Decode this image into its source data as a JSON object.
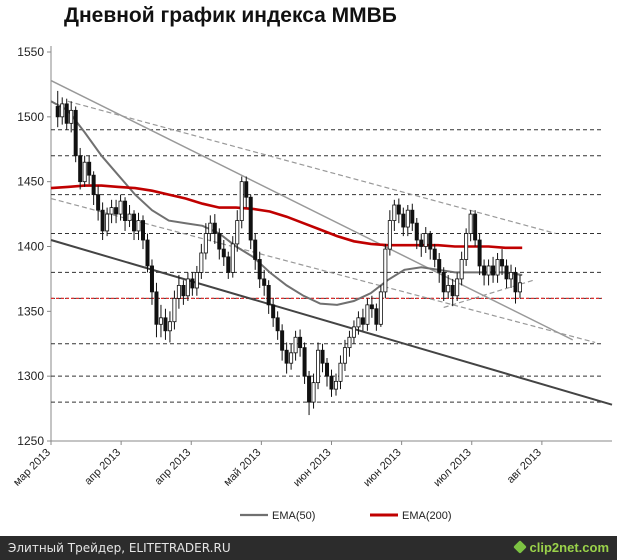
{
  "footer": {
    "left_text": "Элитный Трейдер, ELITETRADER.RU",
    "logo_text": "clip2net.com",
    "logo_icon": "clip2net-logo-icon"
  },
  "chart_data": {
    "type": "line",
    "title": "Дневной график индекса ММВБ",
    "xlabel": "",
    "ylabel": "",
    "ylim": [
      1250,
      1550
    ],
    "y_ticks": [
      1250,
      1300,
      1350,
      1400,
      1450,
      1500,
      1550
    ],
    "x_domain": [
      0,
      100
    ],
    "x_ticks": [
      {
        "x": 0,
        "label": "мар 2013"
      },
      {
        "x": 12.5,
        "label": "апр 2013"
      },
      {
        "x": 25,
        "label": "апр 2013"
      },
      {
        "x": 37.5,
        "label": "май 2013"
      },
      {
        "x": 50,
        "label": "июн 2013"
      },
      {
        "x": 62.5,
        "label": "июн 2013"
      },
      {
        "x": 75,
        "label": "июл 2013"
      },
      {
        "x": 87.5,
        "label": "авг 2013"
      }
    ],
    "grid": false,
    "legend": "bottom",
    "colors": {
      "candles": "#111111",
      "ema50": "#707070",
      "ema200": "#c00000",
      "support_red": "#e03030",
      "trend_dark": "#444444",
      "trend_grey": "#999999",
      "level": "#333333"
    },
    "candles": [
      [
        1.2,
        1508,
        1500,
        1520,
        1492
      ],
      [
        2.0,
        1500,
        1510,
        1515,
        1494
      ],
      [
        2.8,
        1510,
        1495,
        1514,
        1490
      ],
      [
        3.6,
        1495,
        1505,
        1512,
        1488
      ],
      [
        4.4,
        1505,
        1470,
        1508,
        1465
      ],
      [
        5.2,
        1470,
        1450,
        1476,
        1444
      ],
      [
        6.0,
        1450,
        1465,
        1470,
        1446
      ],
      [
        6.8,
        1465,
        1455,
        1470,
        1448
      ],
      [
        7.6,
        1455,
        1440,
        1458,
        1432
      ],
      [
        8.4,
        1440,
        1428,
        1447,
        1420
      ],
      [
        9.2,
        1428,
        1412,
        1434,
        1405
      ],
      [
        10.0,
        1412,
        1425,
        1430,
        1408
      ],
      [
        10.8,
        1425,
        1430,
        1436,
        1418
      ],
      [
        11.6,
        1430,
        1425,
        1436,
        1418
      ],
      [
        12.4,
        1425,
        1435,
        1440,
        1420
      ],
      [
        13.2,
        1435,
        1420,
        1438,
        1412
      ],
      [
        14.0,
        1420,
        1425,
        1432,
        1415
      ],
      [
        14.8,
        1425,
        1412,
        1428,
        1405
      ],
      [
        15.6,
        1412,
        1420,
        1426,
        1405
      ],
      [
        16.4,
        1420,
        1405,
        1424,
        1398
      ],
      [
        17.2,
        1405,
        1385,
        1410,
        1380
      ],
      [
        18.0,
        1385,
        1365,
        1390,
        1355
      ],
      [
        18.8,
        1365,
        1340,
        1372,
        1330
      ],
      [
        19.6,
        1340,
        1345,
        1355,
        1330
      ],
      [
        20.4,
        1345,
        1335,
        1352,
        1328
      ],
      [
        21.2,
        1335,
        1342,
        1350,
        1326
      ],
      [
        22.0,
        1342,
        1360,
        1366,
        1336
      ],
      [
        22.8,
        1360,
        1370,
        1378,
        1352
      ],
      [
        23.6,
        1370,
        1362,
        1374,
        1355
      ],
      [
        24.4,
        1362,
        1375,
        1380,
        1358
      ],
      [
        25.2,
        1375,
        1368,
        1380,
        1362
      ],
      [
        26.0,
        1368,
        1380,
        1385,
        1362
      ],
      [
        26.8,
        1380,
        1395,
        1402,
        1375
      ],
      [
        27.6,
        1395,
        1410,
        1418,
        1390
      ],
      [
        28.4,
        1410,
        1418,
        1424,
        1404
      ],
      [
        29.2,
        1418,
        1410,
        1425,
        1402
      ],
      [
        30.0,
        1410,
        1398,
        1414,
        1390
      ],
      [
        30.8,
        1398,
        1392,
        1405,
        1385
      ],
      [
        31.6,
        1392,
        1380,
        1396,
        1375
      ],
      [
        32.4,
        1380,
        1402,
        1408,
        1376
      ],
      [
        33.2,
        1402,
        1420,
        1428,
        1396
      ],
      [
        34.0,
        1420,
        1450,
        1454,
        1414
      ],
      [
        34.8,
        1450,
        1438,
        1454,
        1430
      ],
      [
        35.6,
        1438,
        1405,
        1440,
        1398
      ],
      [
        36.4,
        1405,
        1390,
        1410,
        1382
      ],
      [
        37.2,
        1390,
        1375,
        1396,
        1368
      ],
      [
        38.0,
        1375,
        1370,
        1382,
        1362
      ],
      [
        38.8,
        1370,
        1355,
        1374,
        1348
      ],
      [
        39.6,
        1355,
        1345,
        1360,
        1338
      ],
      [
        40.4,
        1345,
        1335,
        1350,
        1328
      ],
      [
        41.2,
        1335,
        1320,
        1340,
        1312
      ],
      [
        42.0,
        1320,
        1310,
        1326,
        1302
      ],
      [
        42.8,
        1310,
        1318,
        1325,
        1305
      ],
      [
        43.6,
        1318,
        1330,
        1335,
        1312
      ],
      [
        44.4,
        1330,
        1322,
        1336,
        1315
      ],
      [
        45.2,
        1322,
        1300,
        1326,
        1294
      ],
      [
        46.0,
        1300,
        1280,
        1304,
        1270
      ],
      [
        46.8,
        1280,
        1295,
        1302,
        1275
      ],
      [
        47.6,
        1295,
        1320,
        1326,
        1290
      ],
      [
        48.4,
        1320,
        1310,
        1325,
        1303
      ],
      [
        49.2,
        1310,
        1300,
        1314,
        1292
      ],
      [
        50.0,
        1300,
        1290,
        1305,
        1284
      ],
      [
        50.8,
        1290,
        1296,
        1302,
        1285
      ],
      [
        51.6,
        1296,
        1310,
        1316,
        1290
      ],
      [
        52.4,
        1310,
        1322,
        1328,
        1304
      ],
      [
        53.2,
        1322,
        1330,
        1335,
        1315
      ],
      [
        54.0,
        1330,
        1338,
        1343,
        1325
      ],
      [
        54.8,
        1338,
        1345,
        1350,
        1332
      ],
      [
        55.6,
        1345,
        1340,
        1352,
        1335
      ],
      [
        56.4,
        1340,
        1355,
        1360,
        1335
      ],
      [
        57.2,
        1355,
        1352,
        1362,
        1345
      ],
      [
        58.0,
        1352,
        1340,
        1356,
        1335
      ],
      [
        58.8,
        1340,
        1365,
        1370,
        1338
      ],
      [
        59.6,
        1365,
        1398,
        1402,
        1360
      ],
      [
        60.4,
        1398,
        1420,
        1428,
        1393
      ],
      [
        61.2,
        1420,
        1432,
        1436,
        1412
      ],
      [
        62.0,
        1432,
        1425,
        1437,
        1418
      ],
      [
        62.8,
        1425,
        1415,
        1430,
        1408
      ],
      [
        63.6,
        1415,
        1428,
        1432,
        1408
      ],
      [
        64.4,
        1428,
        1418,
        1433,
        1412
      ],
      [
        65.2,
        1418,
        1405,
        1422,
        1398
      ],
      [
        66.0,
        1405,
        1400,
        1410,
        1392
      ],
      [
        66.8,
        1400,
        1410,
        1415,
        1395
      ],
      [
        67.6,
        1410,
        1398,
        1412,
        1390
      ],
      [
        68.4,
        1398,
        1390,
        1402,
        1384
      ],
      [
        69.2,
        1390,
        1380,
        1395,
        1372
      ],
      [
        70.0,
        1380,
        1365,
        1384,
        1358
      ],
      [
        70.8,
        1365,
        1370,
        1378,
        1360
      ],
      [
        71.6,
        1370,
        1362,
        1375,
        1354
      ],
      [
        72.4,
        1362,
        1375,
        1380,
        1358
      ],
      [
        73.2,
        1375,
        1390,
        1396,
        1370
      ],
      [
        74.0,
        1390,
        1410,
        1414,
        1385
      ],
      [
        74.8,
        1410,
        1425,
        1428,
        1404
      ],
      [
        75.6,
        1425,
        1405,
        1428,
        1400
      ],
      [
        76.4,
        1405,
        1385,
        1410,
        1378
      ],
      [
        77.2,
        1385,
        1378,
        1390,
        1370
      ],
      [
        78.0,
        1378,
        1385,
        1390,
        1370
      ],
      [
        78.8,
        1385,
        1378,
        1392,
        1372
      ],
      [
        79.6,
        1378,
        1390,
        1395,
        1372
      ],
      [
        80.4,
        1390,
        1385,
        1398,
        1378
      ],
      [
        81.2,
        1385,
        1375,
        1390,
        1368
      ],
      [
        82.0,
        1375,
        1380,
        1386,
        1368
      ],
      [
        82.8,
        1380,
        1365,
        1384,
        1356
      ],
      [
        83.6,
        1365,
        1372,
        1378,
        1360
      ]
    ],
    "series": [
      {
        "name": "EMA(50)",
        "color": "#707070",
        "x": [
          0,
          3,
          6,
          9,
          12,
          15,
          18,
          21,
          24,
          27,
          30,
          33,
          36,
          39,
          42,
          45,
          48,
          51,
          54,
          57,
          60,
          63,
          66,
          69,
          72,
          75,
          78,
          81,
          84
        ],
        "values": [
          1512,
          1505,
          1488,
          1470,
          1455,
          1440,
          1428,
          1420,
          1418,
          1416,
          1410,
          1400,
          1392,
          1380,
          1370,
          1362,
          1356,
          1355,
          1358,
          1364,
          1374,
          1382,
          1384,
          1382,
          1380,
          1380,
          1380,
          1380,
          1378
        ]
      },
      {
        "name": "EMA(200)",
        "color": "#c00000",
        "x": [
          0,
          3,
          6,
          9,
          12,
          15,
          18,
          21,
          24,
          27,
          30,
          33,
          36,
          39,
          42,
          45,
          48,
          51,
          54,
          57,
          60,
          63,
          66,
          69,
          72,
          75,
          78,
          81,
          84
        ],
        "values": [
          1445,
          1446,
          1447,
          1447,
          1446,
          1445,
          1443,
          1440,
          1437,
          1433,
          1430,
          1430,
          1429,
          1427,
          1423,
          1418,
          1413,
          1408,
          1404,
          1402,
          1401,
          1401,
          1401,
          1401,
          1400,
          1400,
          1400,
          1399,
          1399
        ]
      }
    ],
    "levels": [
      1490,
      1470,
      1440,
      1410,
      1380,
      1360,
      1325,
      1300,
      1280
    ],
    "support_level": 1360,
    "trendlines": [
      {
        "style": "dark-solid",
        "x1": 0,
        "y1": 1405,
        "x2": 100,
        "y2": 1278
      },
      {
        "style": "grey-solid",
        "x1": 0,
        "y1": 1528,
        "x2": 93,
        "y2": 1328
      },
      {
        "style": "grey-dashed",
        "x1": 3,
        "y1": 1512,
        "x2": 90,
        "y2": 1410
      },
      {
        "style": "grey-dashed",
        "x1": 0,
        "y1": 1437,
        "x2": 97,
        "y2": 1326
      },
      {
        "style": "grey-dashed",
        "x1": 70,
        "y1": 1353,
        "x2": 86,
        "y2": 1374
      }
    ]
  }
}
